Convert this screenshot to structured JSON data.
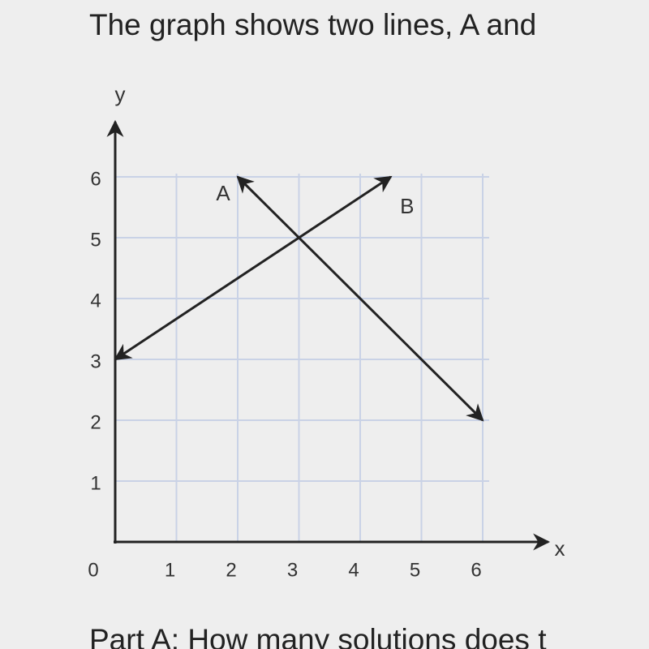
{
  "question": "The graph shows two lines, A and",
  "part_a": "Part A: How many solutions does t",
  "chart_data": {
    "type": "line",
    "xlabel": "x",
    "ylabel": "y",
    "xlim": [
      0,
      6
    ],
    "ylim": [
      0,
      6
    ],
    "xticks": [
      0,
      1,
      2,
      3,
      4,
      5,
      6
    ],
    "yticks": [
      1,
      2,
      3,
      4,
      5,
      6
    ],
    "grid": true,
    "series": [
      {
        "name": "A",
        "color": "#222222",
        "x": [
          2,
          6
        ],
        "values": [
          6,
          2
        ]
      },
      {
        "name": "B",
        "color": "#222222",
        "x": [
          0,
          4.5
        ],
        "values": [
          3,
          6
        ]
      }
    ]
  }
}
